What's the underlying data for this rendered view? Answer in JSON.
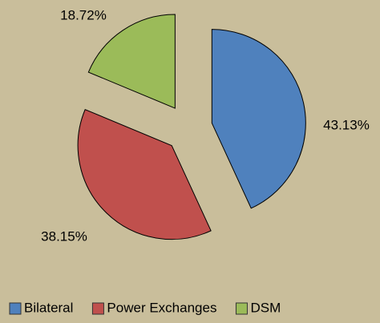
{
  "chart_data": {
    "type": "pie",
    "categories": [
      "Bilateral",
      "Power Exchanges",
      "DSM"
    ],
    "values": [
      43.13,
      38.15,
      18.72
    ],
    "value_labels": [
      "43.13%",
      "38.15%",
      "18.72%"
    ],
    "colors": [
      "#4f81bd",
      "#c0504d",
      "#9bbb59"
    ],
    "legend": "bottom"
  }
}
